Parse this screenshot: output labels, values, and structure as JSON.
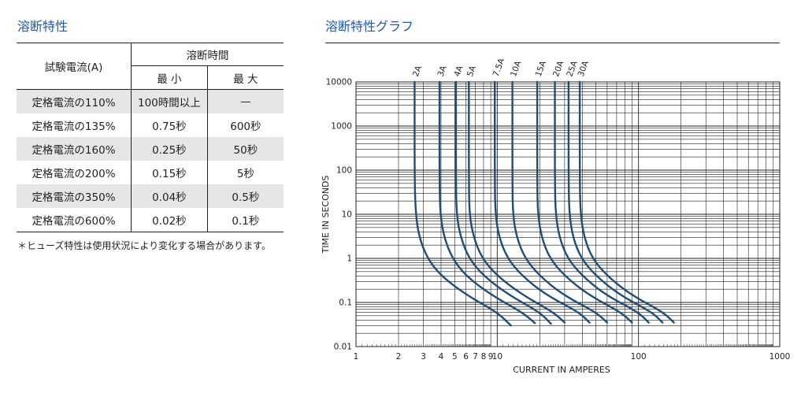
{
  "left": {
    "heading": "溶断特性",
    "table": {
      "row_header": "試験電流(A)",
      "group_header": "溶断時間",
      "min_header": "最 小",
      "max_header": "最 大",
      "rows": [
        {
          "label": "定格電流の110%",
          "min": "100時間以上",
          "max": "—"
        },
        {
          "label": "定格電流の135%",
          "min": "0.75秒",
          "max": "600秒"
        },
        {
          "label": "定格電流の160%",
          "min": "0.25秒",
          "max": "50秒"
        },
        {
          "label": "定格電流の200%",
          "min": "0.15秒",
          "max": "5秒"
        },
        {
          "label": "定格電流の350%",
          "min": "0.04秒",
          "max": "0.5秒"
        },
        {
          "label": "定格電流の600%",
          "min": "0.02秒",
          "max": "0.1秒"
        }
      ]
    },
    "note": "＊ヒューズ特性は使用状況により変化する場合があります。"
  },
  "right": {
    "heading": "溶断特性グラフ"
  },
  "colors": {
    "heading": "#1f5aa6",
    "curve": "#1e4d78",
    "shade": "#e5e6e8"
  },
  "chart_data": {
    "type": "line",
    "xlabel": "CURRENT IN AMPERES",
    "ylabel": "TIME IN SECONDS",
    "xscale": "log",
    "yscale": "log",
    "xlim": [
      1,
      1000
    ],
    "ylim": [
      0.01,
      10000
    ],
    "grid": true,
    "x_tick_labels": [
      {
        "value": 1,
        "label": "1"
      },
      {
        "value": 2,
        "label": "2"
      },
      {
        "value": 3,
        "label": "3"
      },
      {
        "value": 4,
        "label": "4"
      },
      {
        "value": 5,
        "label": "5"
      },
      {
        "value": 6,
        "label": "6"
      },
      {
        "value": 7,
        "label": "7"
      },
      {
        "value": 8,
        "label": "8"
      },
      {
        "value": 9,
        "label": "9"
      },
      {
        "value": 10,
        "label": "10"
      },
      {
        "value": 100,
        "label": "100"
      },
      {
        "value": 1000,
        "label": "1000"
      }
    ],
    "y_tick_labels": [
      {
        "value": 10000,
        "label": "10000"
      },
      {
        "value": 1000,
        "label": "1000"
      },
      {
        "value": 100,
        "label": "100"
      },
      {
        "value": 10,
        "label": "10"
      },
      {
        "value": 1,
        "label": "1"
      },
      {
        "value": 0.1,
        "label": "0.1"
      },
      {
        "value": 0.01,
        "label": "0.01"
      }
    ],
    "series": [
      {
        "name": "2A",
        "points": [
          [
            2.6,
            10000
          ],
          [
            2.6,
            50
          ],
          [
            2.65,
            10
          ],
          [
            2.8,
            3
          ],
          [
            3.2,
            1
          ],
          [
            4,
            0.4
          ],
          [
            6,
            0.15
          ],
          [
            10,
            0.06
          ],
          [
            12.5,
            0.03
          ]
        ]
      },
      {
        "name": "3A",
        "points": [
          [
            3.9,
            10000
          ],
          [
            3.9,
            50
          ],
          [
            3.95,
            10
          ],
          [
            4.2,
            3
          ],
          [
            4.8,
            1
          ],
          [
            6,
            0.4
          ],
          [
            9,
            0.15
          ],
          [
            15,
            0.06
          ],
          [
            18.5,
            0.034
          ]
        ]
      },
      {
        "name": "4A",
        "points": [
          [
            5.1,
            10000
          ],
          [
            5.1,
            50
          ],
          [
            5.15,
            10
          ],
          [
            5.5,
            3
          ],
          [
            6.3,
            1
          ],
          [
            8,
            0.4
          ],
          [
            12,
            0.15
          ],
          [
            20,
            0.06
          ],
          [
            24,
            0.033
          ]
        ]
      },
      {
        "name": "5A",
        "points": [
          [
            6.3,
            10000
          ],
          [
            6.3,
            50
          ],
          [
            6.35,
            10
          ],
          [
            6.8,
            3
          ],
          [
            7.8,
            1
          ],
          [
            10,
            0.4
          ],
          [
            15,
            0.15
          ],
          [
            25,
            0.06
          ],
          [
            30,
            0.035
          ]
        ]
      },
      {
        "name": "7.5A",
        "points": [
          [
            9.6,
            10000
          ],
          [
            9.6,
            50
          ],
          [
            9.7,
            10
          ],
          [
            10.3,
            3
          ],
          [
            11.8,
            1
          ],
          [
            15,
            0.4
          ],
          [
            22,
            0.15
          ],
          [
            38,
            0.06
          ],
          [
            45,
            0.035
          ]
        ]
      },
      {
        "name": "10A",
        "points": [
          [
            12.8,
            10000
          ],
          [
            12.8,
            50
          ],
          [
            12.9,
            10
          ],
          [
            13.7,
            3
          ],
          [
            15.7,
            1
          ],
          [
            20,
            0.4
          ],
          [
            29,
            0.15
          ],
          [
            50,
            0.06
          ],
          [
            60,
            0.035
          ]
        ]
      },
      {
        "name": "15A",
        "points": [
          [
            19.2,
            10000
          ],
          [
            19.2,
            50
          ],
          [
            19.4,
            10
          ],
          [
            20.6,
            3
          ],
          [
            23.5,
            1
          ],
          [
            30,
            0.4
          ],
          [
            44,
            0.15
          ],
          [
            75,
            0.06
          ],
          [
            90,
            0.035
          ]
        ]
      },
      {
        "name": "20A",
        "points": [
          [
            25.6,
            10000
          ],
          [
            25.6,
            50
          ],
          [
            25.9,
            10
          ],
          [
            27.5,
            3
          ],
          [
            31.4,
            1
          ],
          [
            40,
            0.4
          ],
          [
            58,
            0.15
          ],
          [
            100,
            0.06
          ],
          [
            118,
            0.035
          ]
        ]
      },
      {
        "name": "25A",
        "points": [
          [
            32,
            10000
          ],
          [
            32,
            50
          ],
          [
            32.4,
            10
          ],
          [
            34.3,
            3
          ],
          [
            39.2,
            1
          ],
          [
            50,
            0.4
          ],
          [
            73,
            0.15
          ],
          [
            125,
            0.06
          ],
          [
            148,
            0.035
          ]
        ]
      },
      {
        "name": "30A",
        "points": [
          [
            38.4,
            10000
          ],
          [
            38.4,
            50
          ],
          [
            38.9,
            10
          ],
          [
            41.2,
            3
          ],
          [
            47,
            1
          ],
          [
            60,
            0.4
          ],
          [
            88,
            0.15
          ],
          [
            150,
            0.06
          ],
          [
            178,
            0.035
          ]
        ]
      }
    ]
  }
}
